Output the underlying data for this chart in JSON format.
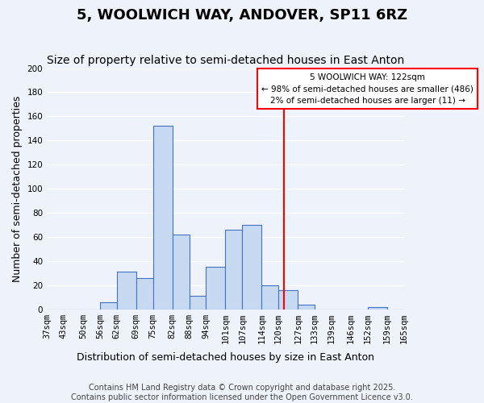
{
  "title": "5, WOOLWICH WAY, ANDOVER, SP11 6RZ",
  "subtitle": "Size of property relative to semi-detached houses in East Anton",
  "xlabel": "Distribution of semi-detached houses by size in East Anton",
  "ylabel": "Number of semi-detached properties",
  "bin_labels": [
    "37sqm",
    "43sqm",
    "50sqm",
    "56sqm",
    "62sqm",
    "69sqm",
    "75sqm",
    "82sqm",
    "88sqm",
    "94sqm",
    "101sqm",
    "107sqm",
    "114sqm",
    "120sqm",
    "127sqm",
    "133sqm",
    "139sqm",
    "146sqm",
    "152sqm",
    "159sqm",
    "165sqm"
  ],
  "bin_edges": [
    37,
    43,
    50,
    56,
    62,
    69,
    75,
    82,
    88,
    94,
    101,
    107,
    114,
    120,
    127,
    133,
    139,
    146,
    152,
    159,
    165
  ],
  "bar_heights": [
    0,
    0,
    0,
    6,
    31,
    26,
    152,
    62,
    11,
    35,
    66,
    70,
    20,
    16,
    4,
    0,
    0,
    0,
    2,
    0
  ],
  "bar_color": "#c6d9f1",
  "bar_edge_color": "#4472c4",
  "vline_x": 122,
  "vline_color": "#ff0000",
  "annotation_title": "5 WOOLWICH WAY: 122sqm",
  "annotation_line1": "← 98% of semi-detached houses are smaller (486)",
  "annotation_line2": "2% of semi-detached houses are larger (11) →",
  "annotation_box_edge": "#ff0000",
  "ylim": [
    0,
    200
  ],
  "yticks": [
    0,
    20,
    40,
    60,
    80,
    100,
    120,
    140,
    160,
    180,
    200
  ],
  "footer1": "Contains HM Land Registry data © Crown copyright and database right 2025.",
  "footer2": "Contains public sector information licensed under the Open Government Licence v3.0.",
  "bg_color": "#eef2fb",
  "grid_color": "#ffffff",
  "title_fontsize": 13,
  "subtitle_fontsize": 10,
  "axis_label_fontsize": 9,
  "tick_fontsize": 7.5,
  "footer_fontsize": 7
}
